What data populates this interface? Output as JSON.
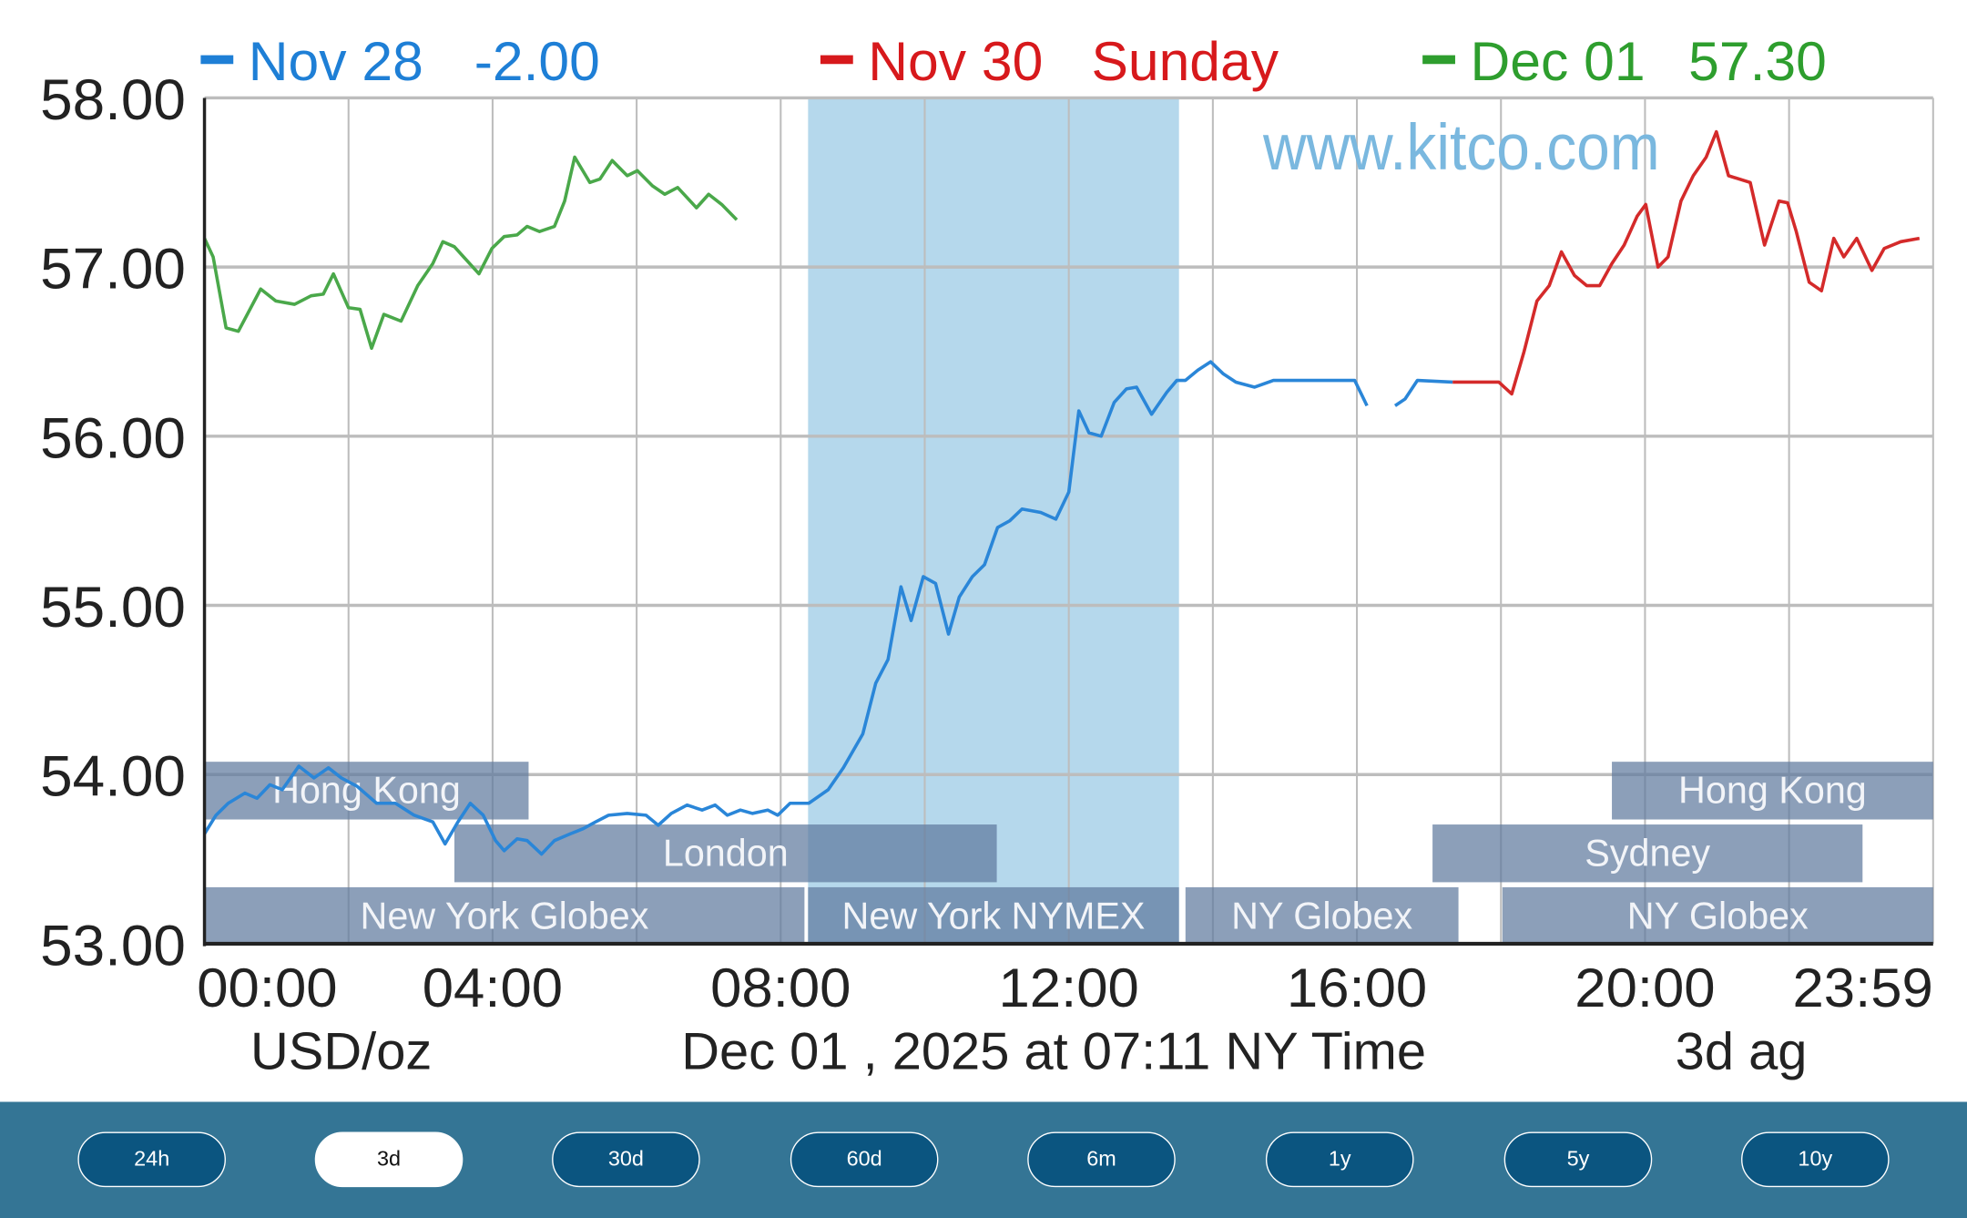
{
  "chart_data": {
    "type": "line",
    "title": "",
    "watermark": "www.kitco.com",
    "ylabel": "USD/oz",
    "xlabel": "Dec 01 , 2025 at 07:11 NY Time",
    "corner_note": "3d ag",
    "ylim": [
      53,
      58
    ],
    "xlim": [
      0,
      24
    ],
    "y_ticks": [
      "58.00",
      "57.00",
      "56.00",
      "55.00",
      "54.00",
      "53.00"
    ],
    "y_tick_values": [
      58,
      57,
      56,
      55,
      54,
      53
    ],
    "x_ticks": [
      "00:00",
      "04:00",
      "08:00",
      "12:00",
      "16:00",
      "20:00",
      "23:59"
    ],
    "x_tick_values": [
      0,
      4,
      8,
      12,
      16,
      20,
      23.98
    ],
    "grid": true,
    "highlight_band_hours": [
      8.38,
      13.53
    ],
    "legend": [
      {
        "name": "Nov 28",
        "value": "-2.00",
        "color": "#1e7fd6"
      },
      {
        "name": "Nov 30",
        "value": "Sunday",
        "color": "#d7191c"
      },
      {
        "name": "Dec 01",
        "value": "57.30",
        "color": "#2e9e2e"
      }
    ],
    "series": [
      {
        "name": "Nov 28",
        "color": "#2a86d8",
        "x": [
          0,
          0.16,
          0.33,
          0.56,
          0.73,
          0.91,
          1.08,
          1.31,
          1.52,
          1.72,
          1.9,
          2.12,
          2.39,
          2.65,
          2.91,
          3.17,
          3.34,
          3.52,
          3.69,
          3.87,
          4.04,
          4.16,
          4.34,
          4.48,
          4.68,
          4.86,
          5.08,
          5.26,
          5.43,
          5.61,
          5.87,
          6.13,
          6.3,
          6.48,
          6.7,
          6.91,
          7.09,
          7.26,
          7.44,
          7.61,
          7.82,
          7.96,
          8.13,
          8.39,
          8.66,
          8.87,
          9.14,
          9.32,
          9.49,
          9.67,
          9.81,
          9.98,
          10.15,
          10.33,
          10.48,
          10.66,
          10.83,
          11.01,
          11.18,
          11.35,
          11.61,
          11.82,
          12.0,
          12.14,
          12.28,
          12.45,
          12.63,
          12.8,
          12.94,
          13.15,
          13.36,
          13.5,
          13.62,
          13.79,
          13.97,
          14.14,
          14.32,
          14.58,
          14.84,
          15.97,
          16.14,
          null,
          16.53,
          16.67,
          16.84,
          17.33
        ],
        "y": [
          53.65,
          53.76,
          53.83,
          53.89,
          53.86,
          53.94,
          53.91,
          54.05,
          53.98,
          54.04,
          53.98,
          53.93,
          53.83,
          53.83,
          53.76,
          53.72,
          53.59,
          53.72,
          53.83,
          53.76,
          53.61,
          53.55,
          53.62,
          53.61,
          53.53,
          53.61,
          53.65,
          53.68,
          53.72,
          53.76,
          53.77,
          53.76,
          53.7,
          53.77,
          53.82,
          53.79,
          53.82,
          53.76,
          53.79,
          53.77,
          53.79,
          53.76,
          53.83,
          53.83,
          53.91,
          54.04,
          54.24,
          54.54,
          54.68,
          55.11,
          54.91,
          55.17,
          55.13,
          54.83,
          55.05,
          55.17,
          55.24,
          55.46,
          55.5,
          55.57,
          55.55,
          55.51,
          55.67,
          56.15,
          56.02,
          56.0,
          56.2,
          56.28,
          56.29,
          56.13,
          56.26,
          56.33,
          56.33,
          56.39,
          56.44,
          56.37,
          56.32,
          56.29,
          56.33,
          56.33,
          56.18,
          null,
          56.18,
          56.22,
          56.33,
          56.32
        ]
      },
      {
        "name": "Nov 30",
        "color": "#d42a2a",
        "x": [
          17.33,
          17.97,
          18.15,
          18.32,
          18.5,
          18.67,
          18.84,
          19.02,
          19.19,
          19.37,
          19.54,
          19.71,
          19.89,
          20.01,
          20.18,
          20.32,
          20.5,
          20.67,
          20.85,
          20.99,
          21.16,
          21.46,
          21.66,
          21.86,
          21.98,
          22.1,
          22.28,
          22.45,
          22.62,
          22.76,
          22.94,
          23.15,
          23.32,
          23.55,
          23.81
        ],
        "y": [
          56.32,
          56.32,
          56.25,
          56.5,
          56.8,
          56.89,
          57.09,
          56.95,
          56.89,
          56.89,
          57.02,
          57.13,
          57.3,
          57.37,
          57.0,
          57.06,
          57.39,
          57.54,
          57.65,
          57.8,
          57.54,
          57.5,
          57.13,
          57.39,
          57.38,
          57.21,
          56.91,
          56.86,
          57.17,
          57.06,
          57.17,
          56.98,
          57.11,
          57.15,
          57.17
        ]
      },
      {
        "name": "Dec 01",
        "color": "#4aa84a",
        "x": [
          0,
          0.12,
          0.3,
          0.47,
          0.78,
          0.99,
          1.25,
          1.48,
          1.65,
          1.79,
          2.0,
          2.16,
          2.32,
          2.49,
          2.73,
          2.96,
          3.17,
          3.31,
          3.47,
          3.64,
          3.81,
          3.99,
          4.16,
          4.34,
          4.48,
          4.65,
          4.86,
          5.0,
          5.14,
          5.35,
          5.49,
          5.66,
          5.87,
          6.01,
          6.22,
          6.39,
          6.57,
          6.83,
          7.0,
          7.18,
          7.39
        ],
        "y": [
          57.17,
          57.06,
          56.64,
          56.62,
          56.87,
          56.8,
          56.78,
          56.83,
          56.84,
          56.96,
          56.76,
          56.75,
          56.52,
          56.72,
          56.68,
          56.89,
          57.02,
          57.15,
          57.12,
          57.04,
          56.96,
          57.11,
          57.18,
          57.19,
          57.24,
          57.21,
          57.24,
          57.39,
          57.65,
          57.5,
          57.52,
          57.63,
          57.54,
          57.57,
          57.48,
          57.43,
          57.47,
          57.35,
          57.43,
          57.37,
          57.28
        ]
      }
    ],
    "sessions": [
      {
        "label": "Hong Kong",
        "start": 0,
        "end": 4.5,
        "row": 0
      },
      {
        "label": "London",
        "start": 3.47,
        "end": 11.0,
        "row": 1
      },
      {
        "label": "New York Globex",
        "start": 0,
        "end": 8.33,
        "row": 2
      },
      {
        "label": "New York NYMEX",
        "start": 8.38,
        "end": 13.53,
        "row": 2
      },
      {
        "label": "NY Globex",
        "start": 13.62,
        "end": 17.41,
        "row": 2
      },
      {
        "label": "NY Globex",
        "start": 18.02,
        "end": 24,
        "row": 2
      },
      {
        "label": "Sydney",
        "start": 17.05,
        "end": 23.02,
        "row": 1
      },
      {
        "label": "Hong Kong",
        "start": 19.54,
        "end": 24,
        "row": 0
      }
    ]
  },
  "range_bar": {
    "buttons": [
      "24h",
      "3d",
      "30d",
      "60d",
      "6m",
      "1y",
      "5y",
      "10y"
    ],
    "active": "3d"
  }
}
